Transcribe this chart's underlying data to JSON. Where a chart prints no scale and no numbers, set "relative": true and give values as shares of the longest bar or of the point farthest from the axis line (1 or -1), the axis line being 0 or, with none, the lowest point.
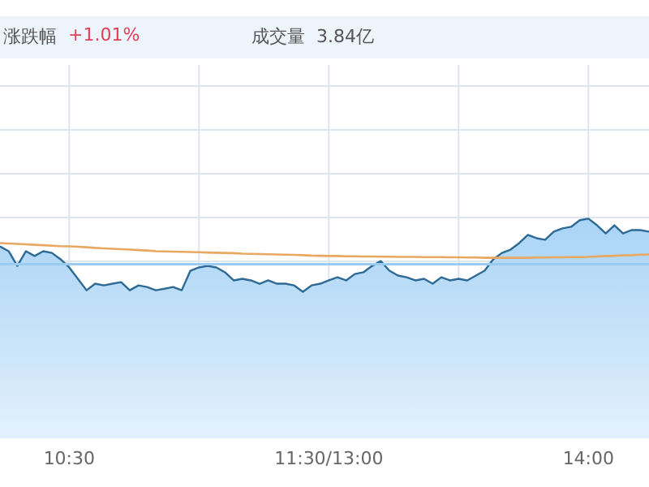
{
  "chart_data": {
    "type": "area",
    "relative": true,
    "categories": [
      null,
      null,
      null,
      null,
      null,
      null,
      null,
      null,
      "10:30",
      null,
      null,
      null,
      null,
      null,
      null,
      null,
      null,
      null,
      null,
      null,
      null,
      null,
      null,
      null,
      null,
      null,
      null,
      null,
      null,
      null,
      null,
      null,
      null,
      null,
      null,
      null,
      null,
      null,
      "11:30/13:00",
      null,
      null,
      null,
      null,
      null,
      null,
      null,
      null,
      null,
      null,
      null,
      null,
      null,
      null,
      null,
      null,
      null,
      null,
      null,
      null,
      null,
      null,
      null,
      null,
      null,
      null,
      null,
      null,
      null,
      "14:00",
      null,
      null,
      null,
      null,
      null,
      null,
      null
    ],
    "series": [
      {
        "color": "#2d6a96",
        "values": [
          0.874,
          0.852,
          0.785,
          0.852,
          0.83,
          0.852,
          0.844,
          0.815,
          0.778,
          0.726,
          0.674,
          0.704,
          0.696,
          0.704,
          0.711,
          0.674,
          0.696,
          0.689,
          0.674,
          0.681,
          0.689,
          0.674,
          0.763,
          0.778,
          0.785,
          0.778,
          0.756,
          0.719,
          0.726,
          0.719,
          0.704,
          0.719,
          0.704,
          0.704,
          0.696,
          0.667,
          0.696,
          0.704,
          0.719,
          0.733,
          0.719,
          0.748,
          0.756,
          0.785,
          0.807,
          0.763,
          0.741,
          0.733,
          0.719,
          0.726,
          0.704,
          0.733,
          0.719,
          0.726,
          0.719,
          0.741,
          0.763,
          0.815,
          0.844,
          0.859,
          0.889,
          0.926,
          0.911,
          0.904,
          0.941,
          0.956,
          0.963,
          0.993,
          1,
          0.97,
          0.933,
          0.97,
          0.933,
          0.948,
          0.948,
          0.941
        ]
      },
      {
        "type": "line",
        "color": "#e8a862",
        "values": [
          0.889,
          0.887,
          0.885,
          0.883,
          0.881,
          0.879,
          0.877,
          0.875,
          0.874,
          0.872,
          0.87,
          0.867,
          0.865,
          0.863,
          0.861,
          0.859,
          0.857,
          0.855,
          0.852,
          0.851,
          0.85,
          0.849,
          0.848,
          0.847,
          0.846,
          0.845,
          0.844,
          0.843,
          0.841,
          0.84,
          0.839,
          0.838,
          0.837,
          0.836,
          0.835,
          0.834,
          0.832,
          0.831,
          0.83,
          0.83,
          0.829,
          0.829,
          0.828,
          0.828,
          0.827,
          0.827,
          0.826,
          0.826,
          0.826,
          0.825,
          0.825,
          0.825,
          0.824,
          0.824,
          0.823,
          0.823,
          0.822,
          0.822,
          0.822,
          0.822,
          0.822,
          0.822,
          0.823,
          0.823,
          0.824,
          0.824,
          0.825,
          0.825,
          0.826,
          0.828,
          0.83,
          0.831,
          0.833,
          0.834,
          0.836,
          0.837
        ]
      }
    ],
    "ref_lines": [
      {
        "axis": "y",
        "value": 0.793,
        "color": "#9ccbf0"
      }
    ],
    "grid": true,
    "marker": "none",
    "annotations": [
      "涨跌幅",
      "+1.01%",
      "成交量",
      "3.84亿"
    ]
  }
}
